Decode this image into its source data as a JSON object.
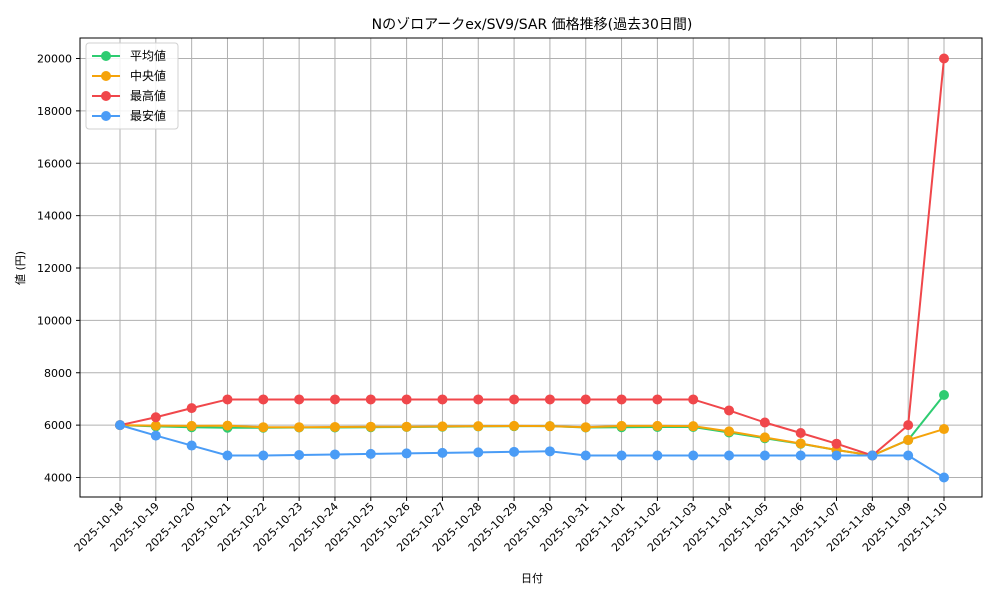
{
  "chart_data": {
    "type": "line",
    "title": "Nのゾロアークex/SV9/SAR 価格推移(過去30日間)",
    "xlabel": "日付",
    "ylabel": "値 (円)",
    "ylim": [
      3250,
      20750
    ],
    "yticks": [
      4000,
      6000,
      8000,
      10000,
      12000,
      14000,
      16000,
      18000,
      20000
    ],
    "grid": true,
    "legend_position": "upper left",
    "categories": [
      "2025-10-18",
      "2025-10-19",
      "2025-10-20",
      "2025-10-21",
      "2025-10-22",
      "2025-10-23",
      "2025-10-24",
      "2025-10-25",
      "2025-10-26",
      "2025-10-27",
      "2025-10-28",
      "2025-10-29",
      "2025-10-30",
      "2025-10-31",
      "2025-11-01",
      "2025-11-02",
      "2025-11-03",
      "2025-11-04",
      "2025-11-05",
      "2025-11-06",
      "2025-11-07",
      "2025-11-08",
      "2025-11-09",
      "2025-11-10"
    ],
    "series": [
      {
        "name": "平均値",
        "color": "#2ecc71",
        "values": [
          6000,
          5950,
          5920,
          5900,
          5900,
          5910,
          5910,
          5920,
          5930,
          5940,
          5950,
          5960,
          5960,
          5910,
          5920,
          5930,
          5930,
          5720,
          5500,
          5290,
          5050,
          4840,
          5430,
          7150
        ]
      },
      {
        "name": "中央値",
        "color": "#f5a30a",
        "values": [
          6000,
          5980,
          5970,
          5980,
          5920,
          5920,
          5930,
          5940,
          5940,
          5950,
          5960,
          5970,
          5960,
          5920,
          5970,
          5970,
          5960,
          5760,
          5530,
          5300,
          5050,
          4840,
          5430,
          5850
        ]
      },
      {
        "name": "最高値",
        "color": "#f0474b",
        "values": [
          6000,
          6300,
          6650,
          6980,
          6980,
          6980,
          6980,
          6980,
          6980,
          6980,
          6980,
          6980,
          6980,
          6980,
          6980,
          6980,
          6980,
          6560,
          6100,
          5700,
          5290,
          4840,
          6000,
          20000
        ]
      },
      {
        "name": "最安値",
        "color": "#4a9cf6",
        "values": [
          6000,
          5600,
          5220,
          4840,
          4840,
          4860,
          4880,
          4900,
          4920,
          4940,
          4960,
          4980,
          5000,
          4840,
          4840,
          4840,
          4840,
          4840,
          4840,
          4840,
          4840,
          4840,
          4840,
          4000
        ]
      }
    ]
  }
}
